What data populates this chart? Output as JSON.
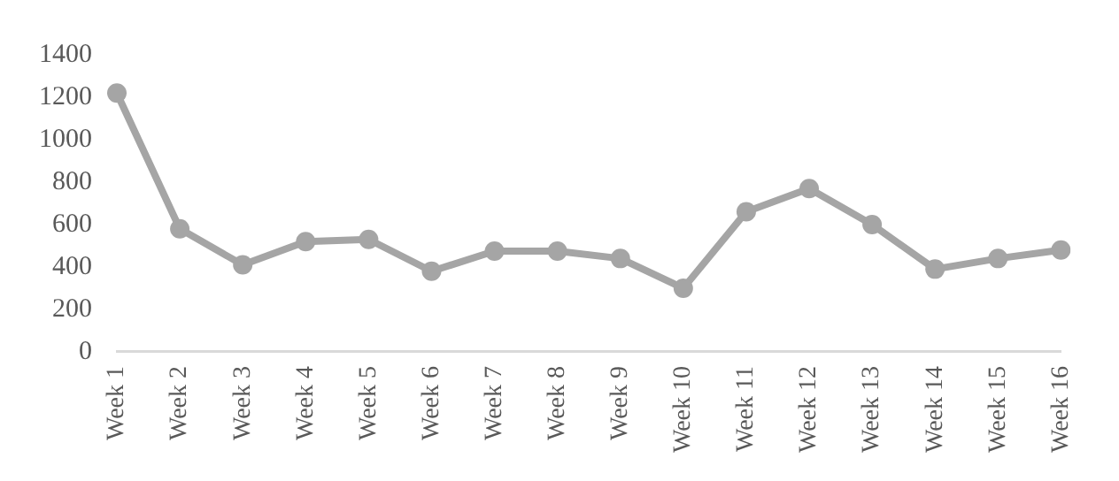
{
  "chart_data": {
    "type": "line",
    "categories": [
      "Week 1",
      "Week 2",
      "Week 3",
      "Week 4",
      "Week 5",
      "Week 6",
      "Week 7",
      "Week 8",
      "Week 9",
      "Week 10",
      "Week 11",
      "Week 12",
      "Week 13",
      "Week 14",
      "Week 15",
      "Week 16"
    ],
    "series": [
      {
        "color": "#a5a5a5",
        "values": [
          1220,
          580,
          410,
          520,
          530,
          380,
          475,
          475,
          440,
          300,
          660,
          770,
          600,
          390,
          440,
          480
        ]
      }
    ],
    "ylim": [
      0,
      1400
    ],
    "yticks": [
      0,
      200,
      400,
      600,
      800,
      1000,
      1200,
      1400
    ],
    "grid": false,
    "legend": false,
    "marker": "circle",
    "line_style": "solid"
  }
}
